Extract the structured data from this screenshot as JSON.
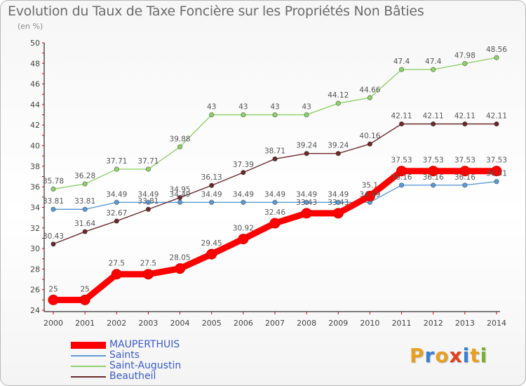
{
  "title": "Evolution du Taux de Taxe Foncière sur les Propriétés Non Bâties",
  "subtitle": "(en %)",
  "logo": {
    "text": "Proxiti",
    "colors": [
      "#e8a020",
      "#3a7fd0",
      "#e8a020",
      "#e04020",
      "#3a7fd0",
      "#e8a020",
      "#7ab030"
    ]
  },
  "chart_data": {
    "type": "line",
    "title": "Evolution du Taux de Taxe Foncière sur les Propriétés Non Bâties",
    "ylabel": "(en %)",
    "xlabel": "",
    "ylim": [
      24,
      50
    ],
    "yticks": [
      24,
      26,
      28,
      30,
      32,
      34,
      36,
      38,
      40,
      42,
      44,
      46,
      48,
      50
    ],
    "grid": false,
    "legend_position": "bottom-left",
    "categories": [
      "2000",
      "2001",
      "2002",
      "2003",
      "2004",
      "2005",
      "2006",
      "2007",
      "2008",
      "2009",
      "2010",
      "2011",
      "2012",
      "2013",
      "2014"
    ],
    "series": [
      {
        "name": "MAUPERTHUIS",
        "color": "#ff0000",
        "text_color": "#3a5bd0",
        "bold": true,
        "values": [
          25,
          25,
          27.5,
          27.5,
          28.05,
          29.45,
          30.92,
          32.46,
          33.43,
          33.43,
          35.1,
          37.53,
          37.53,
          37.53,
          37.53
        ]
      },
      {
        "name": "Saints",
        "color": "#5b9bd5",
        "text_color": "#3a5bd0",
        "bold": false,
        "values": [
          33.81,
          33.81,
          34.49,
          34.49,
          34.49,
          34.49,
          34.49,
          34.49,
          34.49,
          34.49,
          34.49,
          36.16,
          36.16,
          36.16,
          36.51
        ]
      },
      {
        "name": "Saint-Augustin",
        "color": "#8fd16a",
        "text_color": "#3a5bd0",
        "bold": false,
        "values": [
          35.78,
          36.28,
          37.71,
          37.71,
          39.88,
          43,
          43,
          43,
          43,
          44.12,
          44.66,
          47.4,
          47.4,
          47.98,
          48.56
        ]
      },
      {
        "name": "Beautheil",
        "color": "#6b2a2a",
        "text_color": "#3a5bd0",
        "bold": false,
        "values": [
          30.43,
          31.64,
          32.67,
          33.81,
          34.95,
          36.13,
          37.39,
          38.71,
          39.24,
          39.24,
          40.16,
          42.11,
          42.11,
          42.11,
          42.11
        ]
      }
    ],
    "data_labels": [
      {
        "series": "MAUPERTHUIS",
        "labels": [
          "25",
          "25",
          "27.5",
          "27.5",
          "28.05",
          "29.45",
          "30.92",
          "32.46",
          "33.43",
          "33.43",
          "35.1",
          "37.53",
          "37.53",
          "37.53",
          "37.53"
        ]
      },
      {
        "series": "Saints",
        "labels": [
          "33.81",
          "33.81",
          "34.49",
          "34.49",
          "34.49",
          "34.49",
          "34.49",
          "34.49",
          "34.49",
          "34.49",
          "34.49",
          "36.16",
          "36.16",
          "36.16",
          "36.51"
        ]
      },
      {
        "series": "Saint-Augustin",
        "labels": [
          "35.78",
          "36.28",
          "37.71",
          "37.71",
          "39.88",
          "43",
          "43",
          "43",
          "43",
          "44.12",
          "44.66",
          "47.4",
          "47.4",
          "47.98",
          "48.56"
        ]
      },
      {
        "series": "Beautheil",
        "labels": [
          "30.43",
          "31.64",
          "32.67",
          "33.81",
          "34.95",
          "36.13",
          "37.39",
          "38.71",
          "39.24",
          "39.24",
          "40.16",
          "42.11",
          "42.11",
          "42.11",
          "42.11"
        ]
      }
    ]
  }
}
